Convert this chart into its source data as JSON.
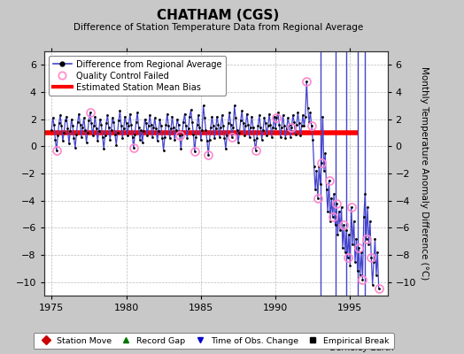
{
  "title": "CHATHAM (CGS)",
  "subtitle": "Difference of Station Temperature Data from Regional Average",
  "ylabel": "Monthly Temperature Anomaly Difference (°C)",
  "ylim": [
    -11,
    7
  ],
  "yticks": [
    -10,
    -8,
    -6,
    -4,
    -2,
    0,
    2,
    4,
    6
  ],
  "xlim": [
    1974.5,
    1997.5
  ],
  "xticks": [
    1975,
    1980,
    1985,
    1990,
    1995
  ],
  "bias_value": 1.0,
  "line_color": "#4444CC",
  "marker_color": "#000000",
  "bias_color": "#FF0000",
  "qc_color": "#FF88CC",
  "bg_color": "#C8C8C8",
  "plot_bg": "#FFFFFF",
  "grid_color": "#BBBBBB",
  "time_series": [
    [
      1975.0,
      1.2
    ],
    [
      1975.083,
      2.1
    ],
    [
      1975.167,
      1.6
    ],
    [
      1975.25,
      0.5
    ],
    [
      1975.333,
      -0.3
    ],
    [
      1975.417,
      0.8
    ],
    [
      1975.5,
      1.7
    ],
    [
      1975.583,
      2.3
    ],
    [
      1975.667,
      1.5
    ],
    [
      1975.75,
      0.4
    ],
    [
      1975.833,
      1.0
    ],
    [
      1975.917,
      1.9
    ],
    [
      1976.0,
      2.2
    ],
    [
      1976.083,
      1.3
    ],
    [
      1976.167,
      0.2
    ],
    [
      1976.25,
      1.1
    ],
    [
      1976.333,
      2.0
    ],
    [
      1976.417,
      1.5
    ],
    [
      1976.5,
      0.6
    ],
    [
      1976.583,
      -0.1
    ],
    [
      1976.667,
      0.9
    ],
    [
      1976.75,
      1.8
    ],
    [
      1976.833,
      2.4
    ],
    [
      1976.917,
      1.6
    ],
    [
      1977.0,
      0.7
    ],
    [
      1977.083,
      1.4
    ],
    [
      1977.167,
      2.1
    ],
    [
      1977.25,
      1.2
    ],
    [
      1977.333,
      0.3
    ],
    [
      1977.417,
      1.0
    ],
    [
      1977.5,
      1.9
    ],
    [
      1977.583,
      2.5
    ],
    [
      1977.667,
      1.7
    ],
    [
      1977.75,
      0.8
    ],
    [
      1977.833,
      1.5
    ],
    [
      1977.917,
      2.2
    ],
    [
      1978.0,
      1.3
    ],
    [
      1978.083,
      0.4
    ],
    [
      1978.167,
      1.1
    ],
    [
      1978.25,
      2.0
    ],
    [
      1978.333,
      1.6
    ],
    [
      1978.417,
      0.7
    ],
    [
      1978.5,
      -0.2
    ],
    [
      1978.583,
      0.8
    ],
    [
      1978.667,
      1.7
    ],
    [
      1978.75,
      2.3
    ],
    [
      1978.833,
      1.4
    ],
    [
      1978.917,
      0.5
    ],
    [
      1979.0,
      1.2
    ],
    [
      1979.083,
      2.1
    ],
    [
      1979.167,
      1.8
    ],
    [
      1979.25,
      0.9
    ],
    [
      1979.333,
      0.1
    ],
    [
      1979.417,
      1.0
    ],
    [
      1979.5,
      1.9
    ],
    [
      1979.583,
      2.6
    ],
    [
      1979.667,
      1.5
    ],
    [
      1979.75,
      0.6
    ],
    [
      1979.833,
      1.3
    ],
    [
      1979.917,
      2.2
    ],
    [
      1980.0,
      1.7
    ],
    [
      1980.083,
      0.8
    ],
    [
      1980.167,
      1.5
    ],
    [
      1980.25,
      2.4
    ],
    [
      1980.333,
      1.6
    ],
    [
      1980.417,
      0.7
    ],
    [
      1980.5,
      -0.1
    ],
    [
      1980.583,
      0.9
    ],
    [
      1980.667,
      1.8
    ],
    [
      1980.75,
      2.5
    ],
    [
      1980.833,
      1.4
    ],
    [
      1980.917,
      0.5
    ],
    [
      1981.0,
      1.2
    ],
    [
      1981.083,
      0.3
    ],
    [
      1981.167,
      1.1
    ],
    [
      1981.25,
      2.0
    ],
    [
      1981.333,
      1.7
    ],
    [
      1981.417,
      0.8
    ],
    [
      1981.5,
      1.5
    ],
    [
      1981.583,
      2.3
    ],
    [
      1981.667,
      1.6
    ],
    [
      1981.75,
      0.7
    ],
    [
      1981.833,
      1.4
    ],
    [
      1981.917,
      2.1
    ],
    [
      1982.0,
      1.3
    ],
    [
      1982.083,
      0.4
    ],
    [
      1982.167,
      1.1
    ],
    [
      1982.25,
      2.0
    ],
    [
      1982.333,
      1.5
    ],
    [
      1982.417,
      0.6
    ],
    [
      1982.5,
      -0.3
    ],
    [
      1982.583,
      0.7
    ],
    [
      1982.667,
      1.6
    ],
    [
      1982.75,
      2.4
    ],
    [
      1982.833,
      1.5
    ],
    [
      1982.917,
      0.6
    ],
    [
      1983.0,
      1.3
    ],
    [
      1983.083,
      2.2
    ],
    [
      1983.167,
      1.4
    ],
    [
      1983.25,
      0.5
    ],
    [
      1983.333,
      1.2
    ],
    [
      1983.417,
      2.0
    ],
    [
      1983.5,
      1.6
    ],
    [
      1983.583,
      0.8
    ],
    [
      1983.667,
      -0.2
    ],
    [
      1983.75,
      0.9
    ],
    [
      1983.833,
      1.8
    ],
    [
      1983.917,
      2.4
    ],
    [
      1984.0,
      1.5
    ],
    [
      1984.083,
      0.6
    ],
    [
      1984.167,
      1.3
    ],
    [
      1984.25,
      2.2
    ],
    [
      1984.333,
      2.7
    ],
    [
      1984.417,
      1.8
    ],
    [
      1984.5,
      0.9
    ],
    [
      1984.583,
      -0.4
    ],
    [
      1984.667,
      0.7
    ],
    [
      1984.75,
      1.6
    ],
    [
      1984.833,
      2.3
    ],
    [
      1984.917,
      1.4
    ],
    [
      1985.0,
      0.5
    ],
    [
      1985.083,
      1.2
    ],
    [
      1985.167,
      3.0
    ],
    [
      1985.25,
      2.1
    ],
    [
      1985.333,
      1.2
    ],
    [
      1985.417,
      0.4
    ],
    [
      1985.5,
      -0.6
    ],
    [
      1985.583,
      0.5
    ],
    [
      1985.667,
      1.4
    ],
    [
      1985.75,
      2.2
    ],
    [
      1985.833,
      1.5
    ],
    [
      1985.917,
      0.6
    ],
    [
      1986.0,
      1.3
    ],
    [
      1986.083,
      2.2
    ],
    [
      1986.167,
      1.6
    ],
    [
      1986.25,
      0.7
    ],
    [
      1986.333,
      1.4
    ],
    [
      1986.417,
      2.3
    ],
    [
      1986.5,
      1.5
    ],
    [
      1986.583,
      0.6
    ],
    [
      1986.667,
      -0.2
    ],
    [
      1986.75,
      0.8
    ],
    [
      1986.833,
      1.7
    ],
    [
      1986.917,
      2.5
    ],
    [
      1987.0,
      1.6
    ],
    [
      1987.083,
      0.7
    ],
    [
      1987.167,
      1.4
    ],
    [
      1987.25,
      3.0
    ],
    [
      1987.333,
      2.1
    ],
    [
      1987.417,
      1.2
    ],
    [
      1987.5,
      0.3
    ],
    [
      1987.583,
      1.0
    ],
    [
      1987.667,
      1.9
    ],
    [
      1987.75,
      2.6
    ],
    [
      1987.833,
      1.7
    ],
    [
      1987.917,
      0.8
    ],
    [
      1988.0,
      1.5
    ],
    [
      1988.083,
      2.4
    ],
    [
      1988.167,
      1.6
    ],
    [
      1988.25,
      0.7
    ],
    [
      1988.333,
      1.4
    ],
    [
      1988.417,
      2.2
    ],
    [
      1988.5,
      1.4
    ],
    [
      1988.583,
      0.5
    ],
    [
      1988.667,
      -0.3
    ],
    [
      1988.75,
      0.6
    ],
    [
      1988.833,
      1.5
    ],
    [
      1988.917,
      2.3
    ],
    [
      1989.0,
      1.4
    ],
    [
      1989.083,
      0.5
    ],
    [
      1989.167,
      1.2
    ],
    [
      1989.25,
      2.1
    ],
    [
      1989.333,
      1.7
    ],
    [
      1989.417,
      0.8
    ],
    [
      1989.5,
      1.5
    ],
    [
      1989.583,
      2.4
    ],
    [
      1989.667,
      1.6
    ],
    [
      1989.75,
      0.7
    ],
    [
      1989.833,
      1.4
    ],
    [
      1989.917,
      2.2
    ],
    [
      1990.0,
      1.3
    ],
    [
      1990.083,
      2.1
    ],
    [
      1990.167,
      2.5
    ],
    [
      1990.25,
      1.6
    ],
    [
      1990.333,
      0.7
    ],
    [
      1990.417,
      1.4
    ],
    [
      1990.5,
      2.3
    ],
    [
      1990.583,
      1.5
    ],
    [
      1990.667,
      0.6
    ],
    [
      1990.75,
      1.3
    ],
    [
      1990.833,
      2.1
    ],
    [
      1990.917,
      1.6
    ],
    [
      1991.0,
      0.7
    ],
    [
      1991.083,
      1.4
    ],
    [
      1991.167,
      2.3
    ],
    [
      1991.25,
      1.8
    ],
    [
      1991.333,
      0.9
    ],
    [
      1991.417,
      1.6
    ],
    [
      1991.5,
      2.5
    ],
    [
      1991.583,
      1.7
    ],
    [
      1991.667,
      0.8
    ],
    [
      1991.75,
      1.5
    ],
    [
      1991.833,
      2.3
    ],
    [
      1991.917,
      1.5
    ],
    [
      1992.0,
      2.2
    ],
    [
      1992.083,
      4.8
    ],
    [
      1992.167,
      2.8
    ],
    [
      1992.25,
      1.8
    ],
    [
      1992.333,
      2.5
    ],
    [
      1992.417,
      1.5
    ],
    [
      1992.5,
      0.5
    ],
    [
      1992.583,
      -1.5
    ],
    [
      1992.667,
      -3.2
    ],
    [
      1992.75,
      -1.8
    ],
    [
      1992.833,
      -3.8
    ],
    [
      1992.917,
      -1.5
    ],
    [
      1993.0,
      -2.8
    ],
    [
      1993.083,
      -1.2
    ],
    [
      1993.167,
      2.2
    ],
    [
      1993.25,
      -1.8
    ],
    [
      1993.333,
      -0.5
    ],
    [
      1993.417,
      -3.2
    ],
    [
      1993.5,
      -4.8
    ],
    [
      1993.583,
      -2.5
    ],
    [
      1993.667,
      -5.5
    ],
    [
      1993.75,
      -3.8
    ],
    [
      1993.833,
      -5.2
    ],
    [
      1993.917,
      -3.5
    ],
    [
      1994.0,
      -5.8
    ],
    [
      1994.083,
      -4.2
    ],
    [
      1994.167,
      -6.5
    ],
    [
      1994.25,
      -4.8
    ],
    [
      1994.333,
      -6.2
    ],
    [
      1994.417,
      -4.5
    ],
    [
      1994.5,
      -7.5
    ],
    [
      1994.583,
      -5.8
    ],
    [
      1994.667,
      -7.8
    ],
    [
      1994.75,
      -6.2
    ],
    [
      1994.833,
      -8.2
    ],
    [
      1994.917,
      -6.5
    ],
    [
      1995.0,
      -8.8
    ],
    [
      1995.083,
      -4.5
    ],
    [
      1995.167,
      -7.2
    ],
    [
      1995.25,
      -5.5
    ],
    [
      1995.333,
      -8.5
    ],
    [
      1995.417,
      -6.8
    ],
    [
      1995.5,
      -9.2
    ],
    [
      1995.583,
      -7.5
    ],
    [
      1995.667,
      -9.5
    ],
    [
      1995.75,
      -7.8
    ],
    [
      1995.833,
      -9.8
    ],
    [
      1995.917,
      -5.2
    ],
    [
      1996.0,
      -3.5
    ],
    [
      1996.083,
      -6.8
    ],
    [
      1996.167,
      -4.5
    ],
    [
      1996.25,
      -7.2
    ],
    [
      1996.333,
      -5.5
    ],
    [
      1996.417,
      -8.2
    ],
    [
      1996.5,
      -10.2
    ],
    [
      1996.583,
      -8.5
    ],
    [
      1996.667,
      -6.8
    ],
    [
      1996.75,
      -9.5
    ],
    [
      1996.833,
      -7.8
    ],
    [
      1996.917,
      -10.5
    ]
  ],
  "qc_failed_times": [
    1975.333,
    1977.583,
    1980.5,
    1983.583,
    1984.583,
    1985.5,
    1987.083,
    1988.667,
    1990.083,
    1991.083,
    1992.083,
    1992.417,
    1992.833,
    1993.083,
    1993.583,
    1993.833,
    1994.083,
    1994.583,
    1994.833,
    1995.083,
    1995.583,
    1995.833,
    1996.083,
    1996.417,
    1996.917
  ],
  "obs_change_times": [
    1993.0,
    1994.0,
    1994.75,
    1995.5,
    1996.0
  ],
  "empirical_break_times": [
    1992.5
  ],
  "bias_end_x": 1995.5
}
